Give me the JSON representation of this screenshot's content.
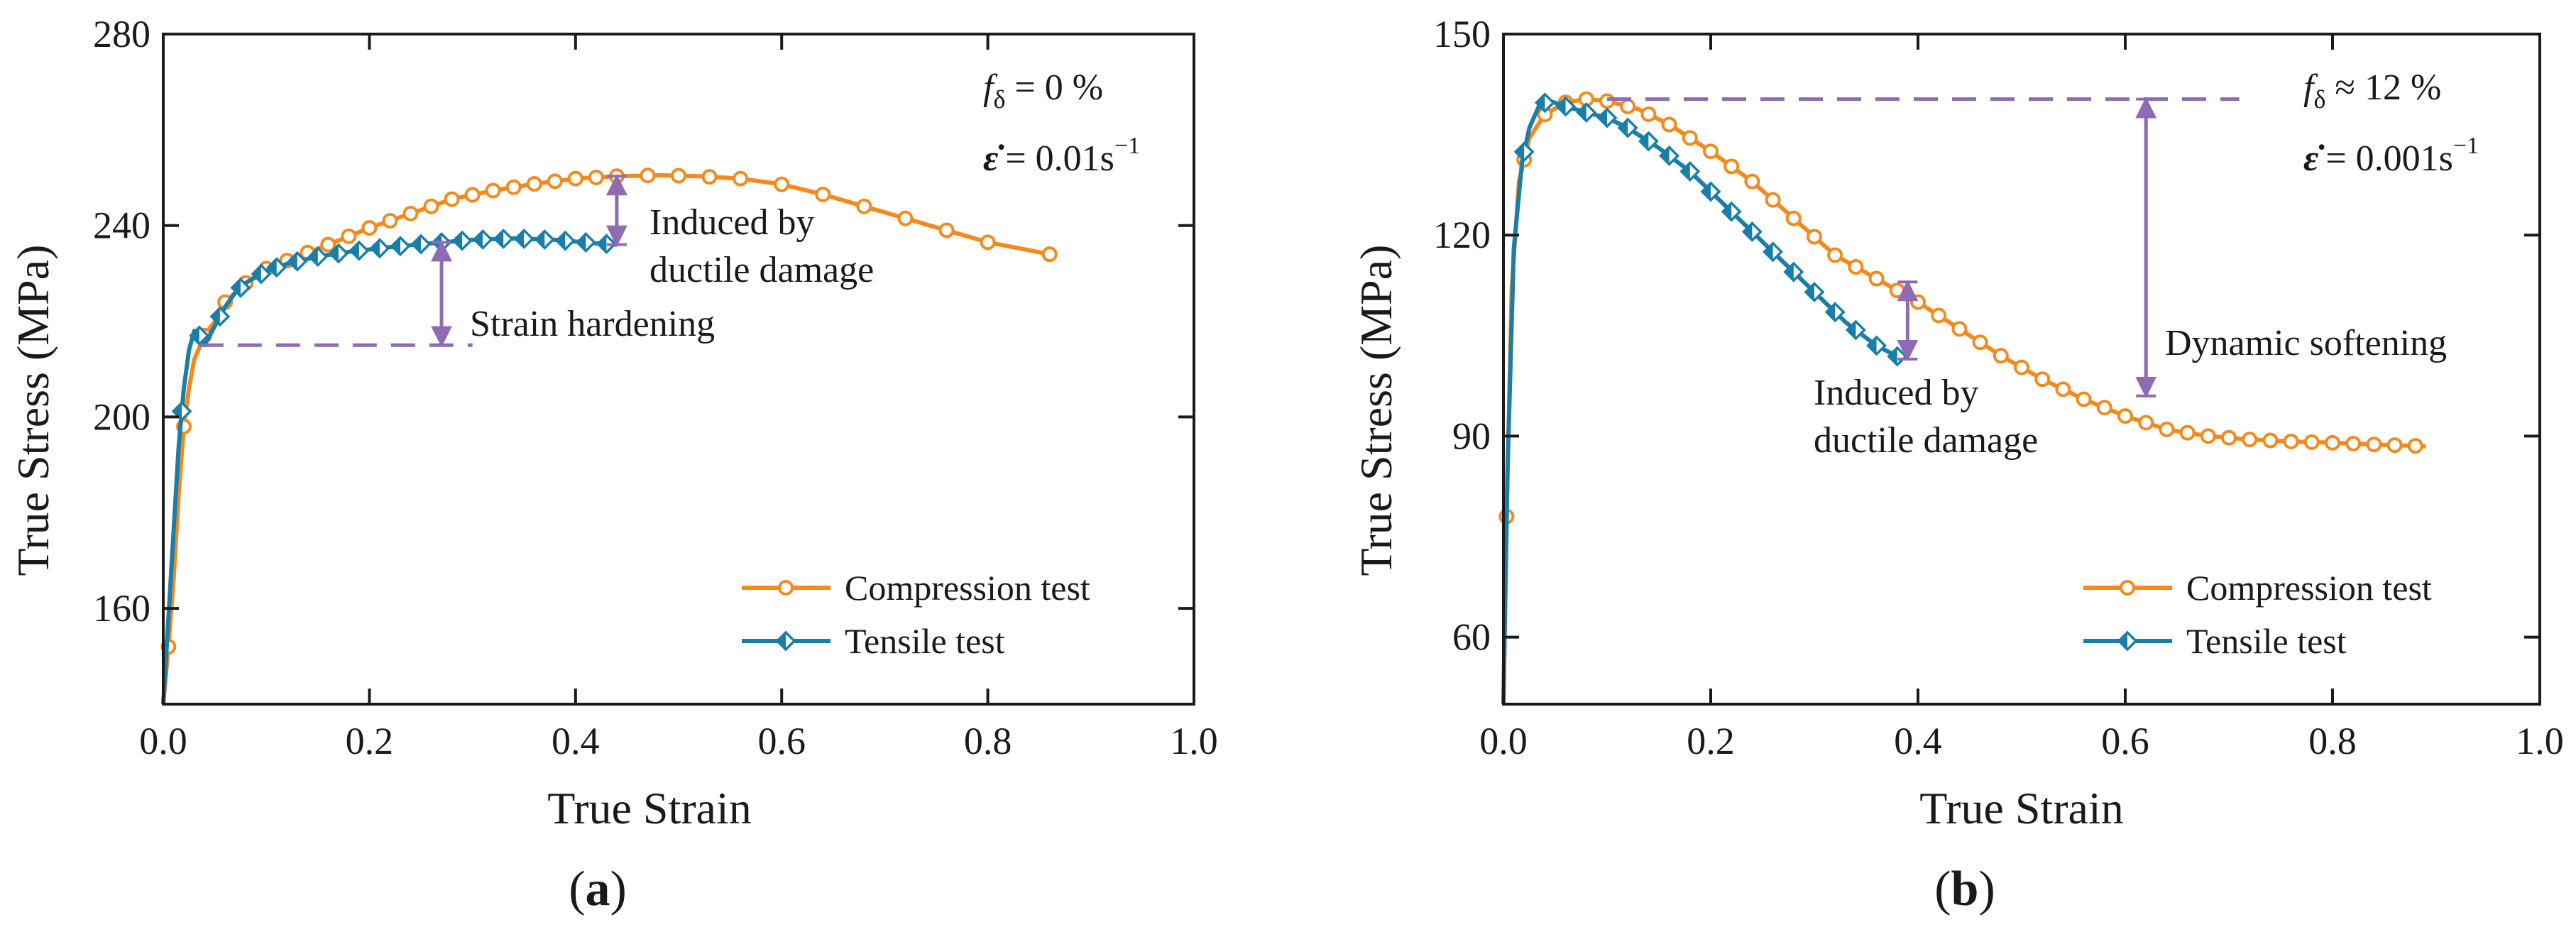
{
  "colors": {
    "compression": "#F28A1E",
    "tensile": "#1A7FA8",
    "annotation": "#8E6BB4",
    "axis": "#1a1a1a"
  },
  "chart_data": [
    {
      "panel_label": "a",
      "type": "line",
      "xlabel": "True Strain",
      "ylabel": "True Stress (MPa)",
      "xlim": [
        0.0,
        1.0
      ],
      "ylim": [
        140,
        280
      ],
      "xticks": [
        0.0,
        0.2,
        0.4,
        0.6,
        0.8,
        1.0
      ],
      "xtick_labels": [
        "0.0",
        "0.2",
        "0.4",
        "0.6",
        "0.8",
        "1.0"
      ],
      "yticks": [
        160,
        200,
        240,
        280
      ],
      "ytick_labels": [
        "160",
        "200",
        "240",
        "280"
      ],
      "conditions": {
        "f_symbol": "f",
        "f_sub": "δ",
        "f_rest": " = 0 %",
        "rate_symbol": "ε̇",
        "rate_value": "= 0.01s",
        "rate_exp": "−1"
      },
      "legend": {
        "position": "bottom-right",
        "entries": [
          "Compression test",
          "Tensile test"
        ]
      },
      "series": [
        {
          "name": "Compression test",
          "x": [
            0.0,
            0.005,
            0.01,
            0.015,
            0.02,
            0.025,
            0.03,
            0.04,
            0.05,
            0.06,
            0.08,
            0.1,
            0.13,
            0.16,
            0.2,
            0.24,
            0.28,
            0.32,
            0.36,
            0.4,
            0.44,
            0.48,
            0.52,
            0.56,
            0.6,
            0.64,
            0.68,
            0.72,
            0.76,
            0.8,
            0.86
          ],
          "y": [
            140,
            152,
            166,
            184,
            198,
            206,
            212,
            217,
            220,
            224,
            228,
            231,
            233.5,
            236,
            239.5,
            242.5,
            245.5,
            247.3,
            248.7,
            249.8,
            250.3,
            250.5,
            250.3,
            249.8,
            248.6,
            246.5,
            244.0,
            241.5,
            239.0,
            236.5,
            234.0
          ],
          "marker_x": [
            0.005,
            0.02,
            0.04,
            0.06,
            0.08,
            0.1,
            0.12,
            0.14,
            0.16,
            0.18,
            0.2,
            0.22,
            0.24,
            0.26,
            0.28,
            0.3,
            0.32,
            0.34,
            0.36,
            0.38,
            0.4,
            0.42,
            0.44,
            0.47,
            0.5,
            0.53,
            0.56,
            0.6,
            0.64,
            0.68,
            0.72,
            0.76,
            0.8,
            0.86
          ]
        },
        {
          "name": "Tensile test",
          "x": [
            0.0,
            0.005,
            0.01,
            0.015,
            0.02,
            0.025,
            0.03,
            0.035,
            0.04,
            0.05,
            0.06,
            0.07,
            0.08,
            0.1,
            0.12,
            0.15,
            0.18,
            0.22,
            0.26,
            0.3,
            0.34,
            0.38,
            0.42,
            0.44
          ],
          "y": [
            140,
            158,
            176,
            194,
            206,
            214,
            218,
            217,
            215,
            219,
            223,
            226,
            228,
            230.5,
            232,
            233.5,
            234.5,
            235.5,
            236.3,
            237,
            237.3,
            237,
            236.3,
            236
          ],
          "marker_x": [
            0.018,
            0.035,
            0.055,
            0.075,
            0.095,
            0.11,
            0.13,
            0.15,
            0.17,
            0.19,
            0.21,
            0.23,
            0.25,
            0.27,
            0.29,
            0.31,
            0.33,
            0.35,
            0.37,
            0.39,
            0.41,
            0.43
          ]
        }
      ],
      "annotations": {
        "hline": {
          "y": 215,
          "x_start": 0.035,
          "x_end": 0.3
        },
        "arrows": [
          {
            "x": 0.27,
            "y_from": 215,
            "y_to": 236.5
          },
          {
            "x": 0.44,
            "y_from": 236,
            "y_to": 250.3
          }
        ],
        "labels": {
          "damage_line1": "Induced by",
          "damage_line2": "ductile damage",
          "hardening": "Strain hardening"
        }
      }
    },
    {
      "panel_label": "b",
      "type": "line",
      "xlabel": "True Strain",
      "ylabel": "True Stress (MPa)",
      "xlim": [
        0.0,
        1.0
      ],
      "ylim": [
        50,
        150
      ],
      "xticks": [
        0.0,
        0.2,
        0.4,
        0.6,
        0.8,
        1.0
      ],
      "xtick_labels": [
        "0.0",
        "0.2",
        "0.4",
        "0.6",
        "0.8",
        "1.0"
      ],
      "yticks": [
        60,
        90,
        120,
        150
      ],
      "ytick_labels": [
        "60",
        "90",
        "120",
        "150"
      ],
      "conditions": {
        "f_symbol": "f",
        "f_sub": "δ",
        "f_rest": " ≈ 12 %",
        "rate_symbol": "ε̇",
        "rate_value": "= 0.001s",
        "rate_exp": "−1"
      },
      "legend": {
        "position": "bottom-right",
        "entries": [
          "Compression test",
          "Tensile test"
        ]
      },
      "series": [
        {
          "name": "Compression test",
          "x": [
            0.0,
            0.003,
            0.008,
            0.015,
            0.025,
            0.04,
            0.06,
            0.08,
            0.1,
            0.13,
            0.16,
            0.2,
            0.24,
            0.28,
            0.32,
            0.36,
            0.4,
            0.44,
            0.48,
            0.52,
            0.56,
            0.6,
            0.64,
            0.68,
            0.72,
            0.76,
            0.8,
            0.85,
            0.89
          ],
          "y": [
            50,
            78,
            112,
            128,
            134.5,
            138,
            139.8,
            140.3,
            140,
            138.8,
            136.5,
            132.5,
            128,
            122.5,
            117,
            113.5,
            110,
            106,
            102,
            98.5,
            95.5,
            93,
            91,
            90,
            89.5,
            89.2,
            89,
            88.7,
            88.5
          ],
          "marker_x": [
            0.003,
            0.02,
            0.04,
            0.06,
            0.08,
            0.1,
            0.12,
            0.14,
            0.16,
            0.18,
            0.2,
            0.22,
            0.24,
            0.26,
            0.28,
            0.3,
            0.32,
            0.34,
            0.36,
            0.38,
            0.4,
            0.42,
            0.44,
            0.46,
            0.48,
            0.5,
            0.52,
            0.54,
            0.56,
            0.58,
            0.6,
            0.62,
            0.64,
            0.66,
            0.68,
            0.7,
            0.72,
            0.74,
            0.76,
            0.78,
            0.8,
            0.82,
            0.84,
            0.86,
            0.88
          ]
        },
        {
          "name": "Tensile test",
          "x": [
            0.0,
            0.004,
            0.01,
            0.018,
            0.025,
            0.035,
            0.045,
            0.06,
            0.08,
            0.1,
            0.12,
            0.15,
            0.18,
            0.21,
            0.24,
            0.27,
            0.3,
            0.33,
            0.36,
            0.385
          ],
          "y": [
            50,
            85,
            118,
            131,
            136,
            139.5,
            140,
            139.2,
            138.3,
            137.5,
            136,
            133,
            129.5,
            125,
            120.5,
            116,
            111.5,
            107,
            103.5,
            101.5
          ],
          "marker_x": [
            0.02,
            0.04,
            0.06,
            0.08,
            0.1,
            0.12,
            0.14,
            0.16,
            0.18,
            0.2,
            0.22,
            0.24,
            0.26,
            0.28,
            0.3,
            0.32,
            0.34,
            0.36,
            0.38
          ]
        }
      ],
      "annotations": {
        "hline": {
          "y": 140.3,
          "x_start": 0.1,
          "x_end": 0.71
        },
        "arrows": [
          {
            "x": 0.62,
            "y_from": 140.3,
            "y_to": 96
          },
          {
            "x": 0.39,
            "y_from": 101.5,
            "y_to": 113
          }
        ],
        "labels": {
          "damage_line1": "Induced by",
          "damage_line2": "ductile damage",
          "softening": "Dynamic softening"
        }
      }
    }
  ]
}
